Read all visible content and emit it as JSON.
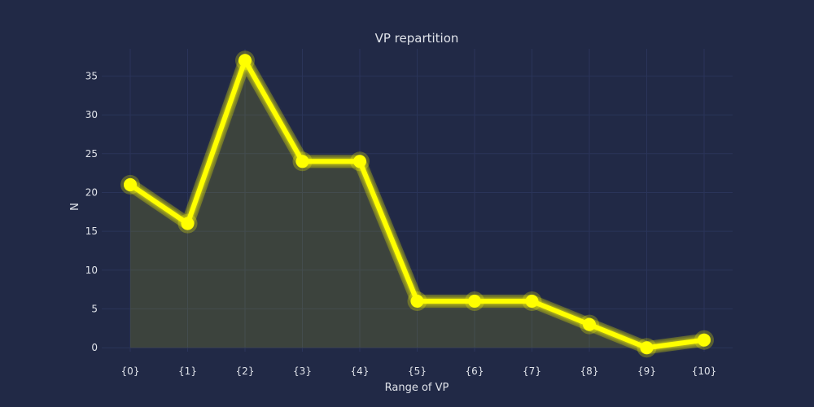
{
  "colors": {
    "background": "#212946",
    "grid": "#2A3459",
    "line": "#FFFF00",
    "fill": "#FFFF00",
    "text": "#E0E3EA"
  },
  "chart_data": {
    "type": "line",
    "title": "VP repartition",
    "xlabel": "Range of VP",
    "ylabel": "N",
    "categories": [
      "{0}",
      "{1}",
      "{2}",
      "{3}",
      "{4}",
      "{5}",
      "{6}",
      "{7}",
      "{8}",
      "{9}",
      "{10}"
    ],
    "series": [
      {
        "values": [
          21,
          16,
          37,
          24,
          24,
          6,
          6,
          6,
          3,
          0,
          1
        ]
      }
    ],
    "ylim": [
      -0.5,
      38.5
    ],
    "yticks": [
      0,
      5,
      10,
      15,
      20,
      25,
      30,
      35
    ],
    "grid": true,
    "area_fill": true,
    "markers": true,
    "glow": true
  }
}
